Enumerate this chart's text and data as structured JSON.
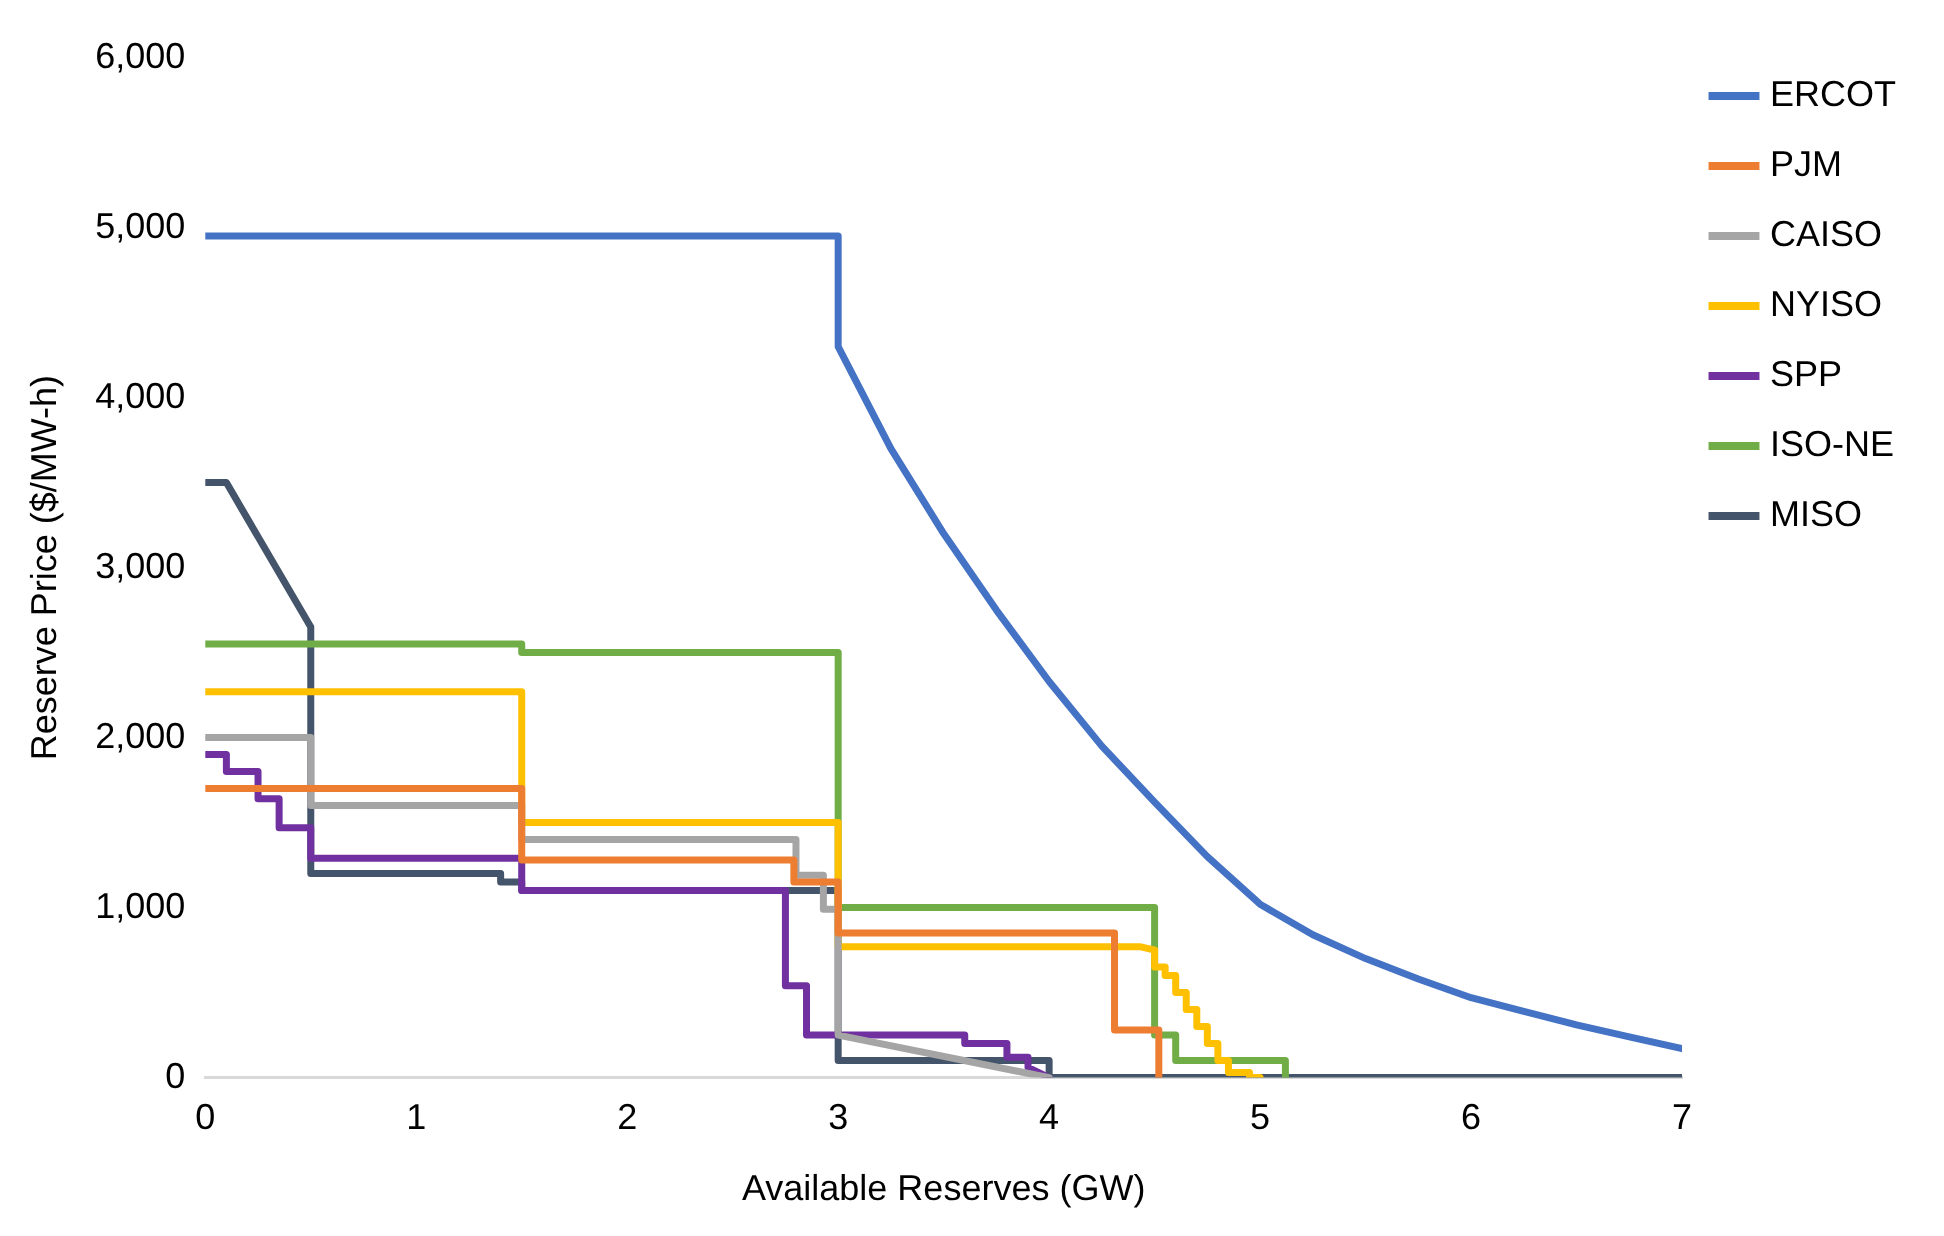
{
  "chart_data": {
    "type": "line",
    "xlabel": "Available Reserves (GW)",
    "ylabel": "Reserve Price ($/MW-h)",
    "xlim": [
      0,
      7
    ],
    "xticks": [
      0,
      1,
      2,
      3,
      4,
      5,
      6,
      7
    ],
    "ylim": [
      0,
      6000
    ],
    "yticks": [
      {
        "value": 0,
        "label": "0"
      },
      {
        "value": 1000,
        "label": "1,000"
      },
      {
        "value": 2000,
        "label": "2,000"
      },
      {
        "value": 3000,
        "label": "3,000"
      },
      {
        "value": 4000,
        "label": "4,000"
      },
      {
        "value": 5000,
        "label": "5,000"
      },
      {
        "value": 6000,
        "label": "6,000"
      }
    ],
    "grid": false,
    "legend": "right",
    "marker": "none",
    "line_style": "solid",
    "series": [
      {
        "name": "ERCOT",
        "color": "#4472c4",
        "x": [
          0,
          3,
          3,
          3.25,
          3.5,
          3.75,
          4,
          4.25,
          4.5,
          4.75,
          5,
          5.25,
          5.5,
          5.75,
          6,
          6.25,
          6.5,
          6.75,
          7
        ],
        "values": [
          4950,
          4950,
          4300,
          3700,
          3200,
          2750,
          2330,
          1950,
          1620,
          1300,
          1020,
          840,
          700,
          580,
          470,
          390,
          310,
          240,
          170
        ]
      },
      {
        "name": "PJM",
        "color": "#ed7d31",
        "x": [
          0,
          1.5,
          1.5,
          2.79,
          2.79,
          3,
          3,
          4.31,
          4.31,
          4.52,
          4.52
        ],
        "values": [
          1700,
          1700,
          1280,
          1280,
          1150,
          1150,
          850,
          850,
          280,
          280,
          0
        ]
      },
      {
        "name": "CAISO",
        "color": "#a5a5a5",
        "x": [
          0,
          0.5,
          0.5,
          1.5,
          1.5,
          2.8,
          2.8,
          2.93,
          2.93,
          3,
          3,
          4
        ],
        "values": [
          2000,
          2000,
          1600,
          1600,
          1400,
          1400,
          1190,
          1190,
          990,
          990,
          250,
          0
        ]
      },
      {
        "name": "NYISO",
        "color": "#ffc000",
        "x": [
          0,
          1.5,
          1.5,
          3,
          3,
          4.43,
          4.5,
          4.5,
          4.55,
          4.55,
          4.6,
          4.6,
          4.65,
          4.65,
          4.7,
          4.7,
          4.75,
          4.75,
          4.8,
          4.8,
          4.85,
          4.85,
          4.95,
          4.95,
          5
        ],
        "values": [
          2270,
          2270,
          1500,
          1500,
          770,
          770,
          750,
          650,
          650,
          600,
          600,
          500,
          500,
          400,
          400,
          300,
          300,
          200,
          200,
          100,
          100,
          30,
          30,
          0,
          0
        ]
      },
      {
        "name": "SPP",
        "color": "#7030a0",
        "x": [
          0,
          0.1,
          0.1,
          0.25,
          0.25,
          0.35,
          0.35,
          0.5,
          0.5,
          1.5,
          1.5,
          2.75,
          2.75,
          2.85,
          2.85,
          3.6,
          3.6,
          3.8,
          3.8,
          3.9,
          3.9,
          4
        ],
        "values": [
          1900,
          1900,
          1800,
          1800,
          1640,
          1640,
          1470,
          1470,
          1290,
          1290,
          1100,
          1100,
          540,
          540,
          250,
          250,
          200,
          200,
          120,
          120,
          60,
          0
        ]
      },
      {
        "name": "ISO-NE",
        "color": "#70ad47",
        "x": [
          0,
          1.5,
          1.5,
          3,
          3,
          4.5,
          4.5,
          4.6,
          4.6,
          5.12,
          5.12
        ],
        "values": [
          2550,
          2550,
          2500,
          2500,
          1000,
          1000,
          250,
          250,
          100,
          100,
          0
        ]
      },
      {
        "name": "MISO",
        "color": "#44546a",
        "x": [
          0,
          0.1,
          0.5,
          0.5,
          1.4,
          1.4,
          1.5,
          1.5,
          3,
          3,
          4,
          4,
          7
        ],
        "values": [
          3500,
          3500,
          2650,
          1200,
          1200,
          1150,
          1150,
          1100,
          1100,
          100,
          100,
          0,
          0
        ]
      }
    ]
  }
}
